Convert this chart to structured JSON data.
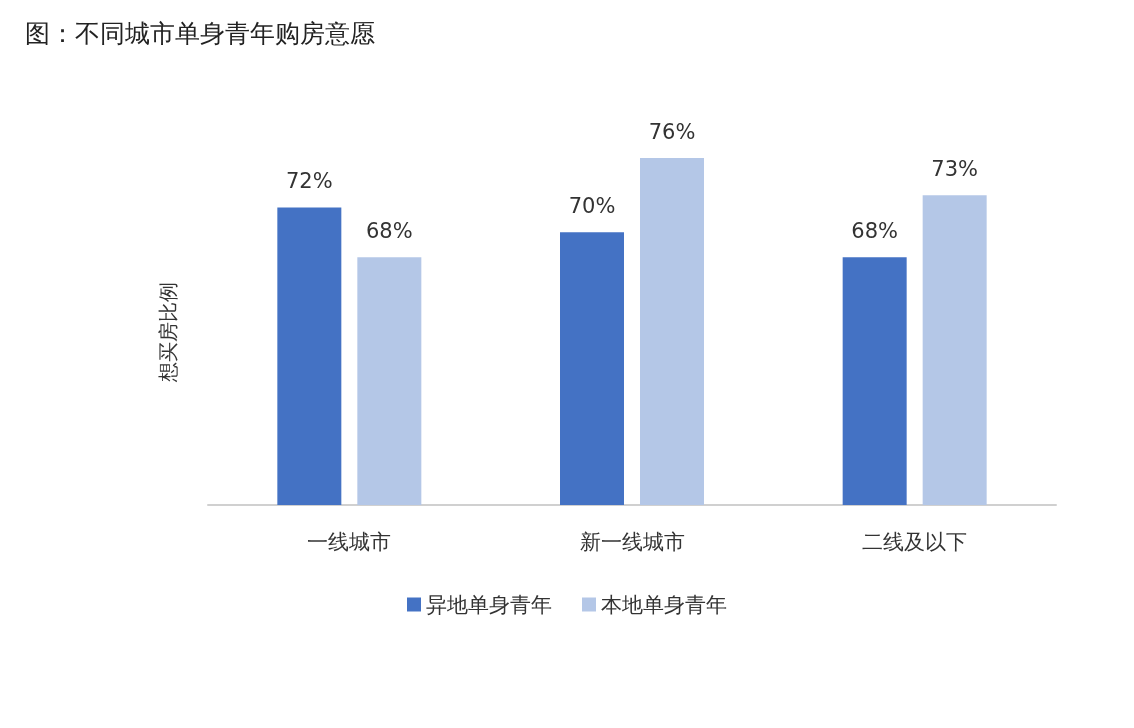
{
  "chart_data": {
    "type": "bar",
    "title": "图：不同城市单身青年购房意愿",
    "ylabel": "想买房比例",
    "categories": [
      "一线城市",
      "新一线城市",
      "二线及以下"
    ],
    "series": [
      {
        "name": "异地单身青年",
        "color": "#4472c4",
        "values": [
          72,
          70,
          68
        ],
        "value_labels": [
          "72%",
          "70%",
          "68%"
        ]
      },
      {
        "name": "本地单身青年",
        "color": "#b4c7e7",
        "values": [
          68,
          76,
          73
        ],
        "value_labels": [
          "68%",
          "76%",
          "73%"
        ]
      }
    ],
    "ylim": [
      48,
      76
    ],
    "legend": "bottom",
    "grid": false
  }
}
